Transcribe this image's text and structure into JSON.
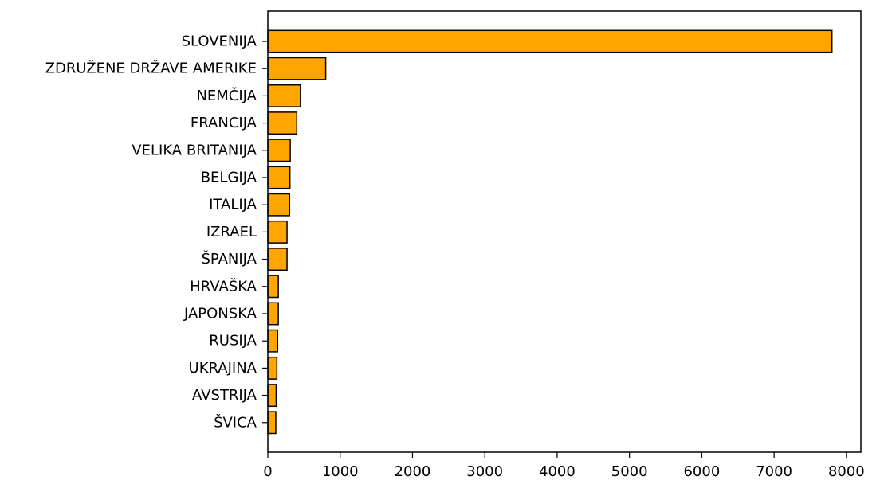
{
  "chart_data": {
    "type": "bar",
    "orientation": "horizontal",
    "title": "",
    "xlabel": "",
    "ylabel": "",
    "categories": [
      "SLOVENIJA",
      "ZDRUŽENE DRŽAVE AMERIKE",
      "NEMČIJA",
      "FRANCIJA",
      "VELIKA BRITANIJA",
      "BELGIJA",
      "ITALIJA",
      "IZRAEL",
      "ŠPANIJA",
      "HRVAŠKA",
      "JAPONSKA",
      "RUSIJA",
      "UKRAJINA",
      "AVSTRIJA",
      "ŠVICA"
    ],
    "values": [
      7800,
      800,
      450,
      400,
      310,
      305,
      300,
      265,
      265,
      145,
      145,
      135,
      125,
      115,
      110
    ],
    "xlim": [
      0,
      8200
    ],
    "xticks": [
      0,
      1000,
      2000,
      3000,
      4000,
      5000,
      6000,
      7000,
      8000
    ],
    "xtick_labels": [
      "0",
      "1000",
      "2000",
      "3000",
      "4000",
      "5000",
      "6000",
      "7000",
      "8000"
    ],
    "grid": false,
    "bar_color": "#FFA500",
    "bar_edge_color": "#000000"
  }
}
